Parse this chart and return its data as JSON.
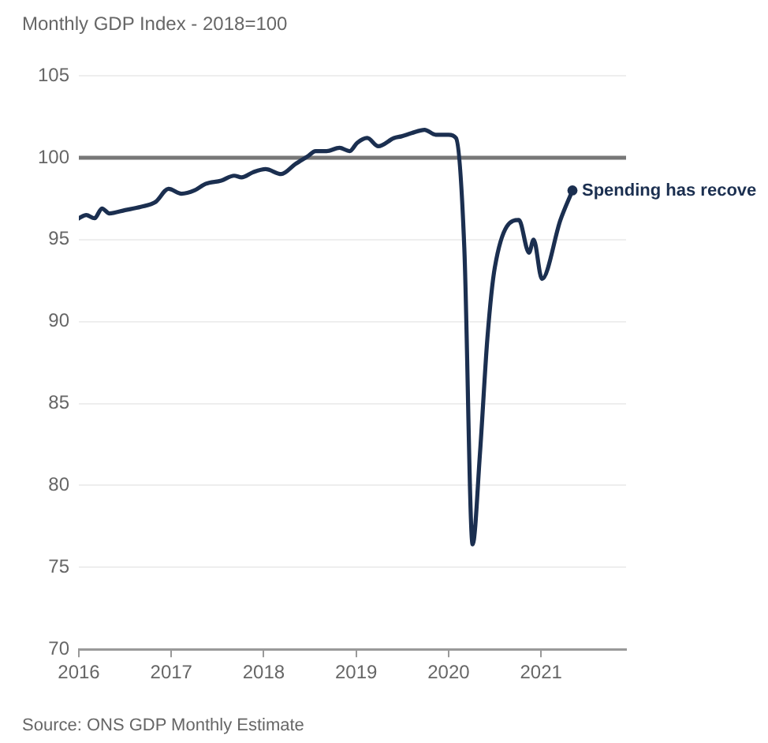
{
  "chart_data": {
    "type": "line",
    "title": "Monthly GDP Index - 2018=100",
    "x": [
      2016.0,
      2016.08,
      2016.17,
      2016.25,
      2016.33,
      2016.5,
      2016.67,
      2016.83,
      2016.97,
      2017.11,
      2017.25,
      2017.37,
      2017.54,
      2017.68,
      2017.76,
      2017.88,
      2018.02,
      2018.19,
      2018.34,
      2018.48,
      2018.56,
      2018.68,
      2018.82,
      2018.93,
      2019.01,
      2019.12,
      2019.24,
      2019.41,
      2019.49,
      2019.6,
      2019.74,
      2019.86,
      2020.0,
      2020.08,
      2020.17,
      2020.26,
      2020.34,
      2020.42,
      2020.5,
      2020.76,
      2020.87,
      2020.92,
      2021.01,
      2021.21,
      2021.34
    ],
    "series": [
      {
        "color": "#1b2f50",
        "values": [
          96.3,
          96.5,
          96.3,
          96.9,
          96.6,
          96.8,
          97.0,
          97.3,
          98.1,
          97.8,
          98.0,
          98.4,
          98.6,
          98.9,
          98.8,
          99.1,
          99.3,
          99.0,
          99.6,
          100.1,
          100.4,
          100.4,
          100.6,
          100.4,
          100.9,
          101.2,
          100.7,
          101.2,
          101.3,
          101.5,
          101.7,
          101.4,
          101.4,
          101.2,
          94.5,
          76.4,
          82.0,
          89.0,
          93.3,
          96.2,
          94.2,
          95.0,
          92.6,
          96.2,
          98.0
        ]
      }
    ],
    "xlim": [
      2016,
      2021.92
    ],
    "xticks": [
      2016,
      2017,
      2018,
      2019,
      2020,
      2021
    ],
    "ylim": [
      70,
      105
    ],
    "yticks": [
      70,
      75,
      80,
      85,
      90,
      95,
      100,
      105
    ],
    "grid": "y",
    "marker": "none",
    "line_style": "solid",
    "legend": false,
    "ref_lines": [
      {
        "axis": "y",
        "value": 100,
        "color": "#777777"
      }
    ],
    "annotations": [
      {
        "text": "Spending has recove",
        "x": 2021.34,
        "y": 98.0
      },
      "Source: ONS GDP Monthly Estimate"
    ]
  }
}
